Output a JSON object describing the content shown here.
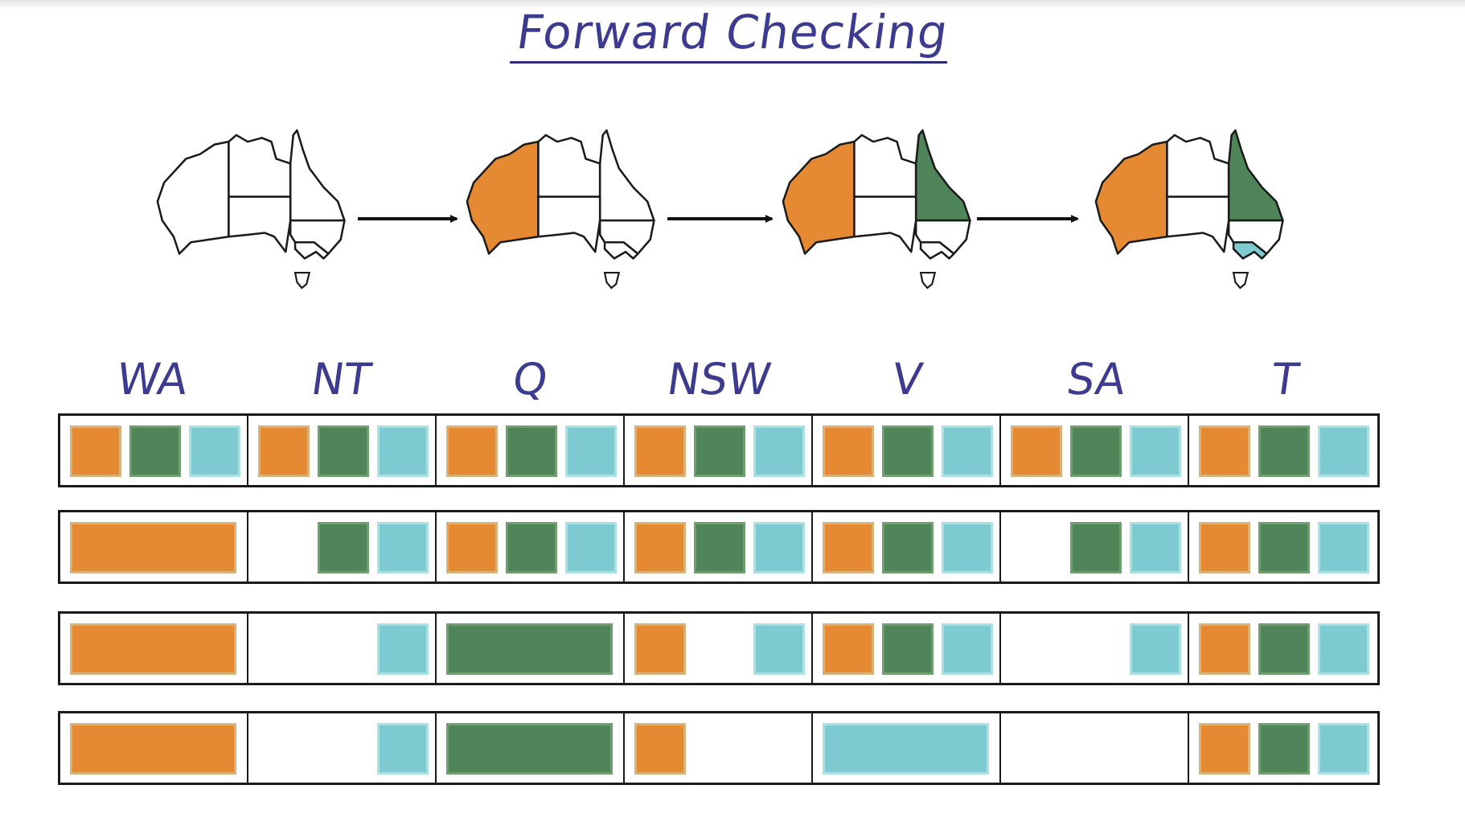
{
  "title": "Forward Checking",
  "colors": {
    "orange": "#e58a33",
    "green": "#4f8559",
    "blue": "#7dcad0"
  },
  "variables": [
    "WA",
    "NT",
    "Q",
    "NSW",
    "V",
    "SA",
    "T"
  ],
  "map_steps": [
    {
      "step": 1,
      "WA": "none",
      "Q": "none",
      "V": "none"
    },
    {
      "step": 2,
      "WA": "orange",
      "Q": "none",
      "V": "none"
    },
    {
      "step": 3,
      "WA": "orange",
      "Q": "green",
      "V": "none"
    },
    {
      "step": 4,
      "WA": "orange",
      "Q": "green",
      "V": "blue"
    }
  ],
  "domain_rows": [
    {
      "WA": [
        "orange",
        "green",
        "blue"
      ],
      "NT": [
        "orange",
        "green",
        "blue"
      ],
      "Q": [
        "orange",
        "green",
        "blue"
      ],
      "NSW": [
        "orange",
        "green",
        "blue"
      ],
      "V": [
        "orange",
        "green",
        "blue"
      ],
      "SA": [
        "orange",
        "green",
        "blue"
      ],
      "T": [
        "orange",
        "green",
        "blue"
      ],
      "assigned": []
    },
    {
      "WA": [
        "orange"
      ],
      "NT": [
        "green",
        "blue"
      ],
      "Q": [
        "orange",
        "green",
        "blue"
      ],
      "NSW": [
        "orange",
        "green",
        "blue"
      ],
      "V": [
        "orange",
        "green",
        "blue"
      ],
      "SA": [
        "green",
        "blue"
      ],
      "T": [
        "orange",
        "green",
        "blue"
      ],
      "assigned": [
        "WA"
      ]
    },
    {
      "WA": [
        "orange"
      ],
      "NT": [
        "blue"
      ],
      "Q": [
        "green"
      ],
      "NSW": [
        "orange",
        "blue"
      ],
      "V": [
        "orange",
        "green",
        "blue"
      ],
      "SA": [
        "blue"
      ],
      "T": [
        "orange",
        "green",
        "blue"
      ],
      "assigned": [
        "WA",
        "Q"
      ]
    },
    {
      "WA": [
        "orange"
      ],
      "NT": [
        "blue"
      ],
      "Q": [
        "green"
      ],
      "NSW": [
        "orange"
      ],
      "V": [
        "blue"
      ],
      "SA": [],
      "T": [
        "orange",
        "green",
        "blue"
      ],
      "assigned": [
        "WA",
        "Q",
        "V"
      ]
    }
  ]
}
